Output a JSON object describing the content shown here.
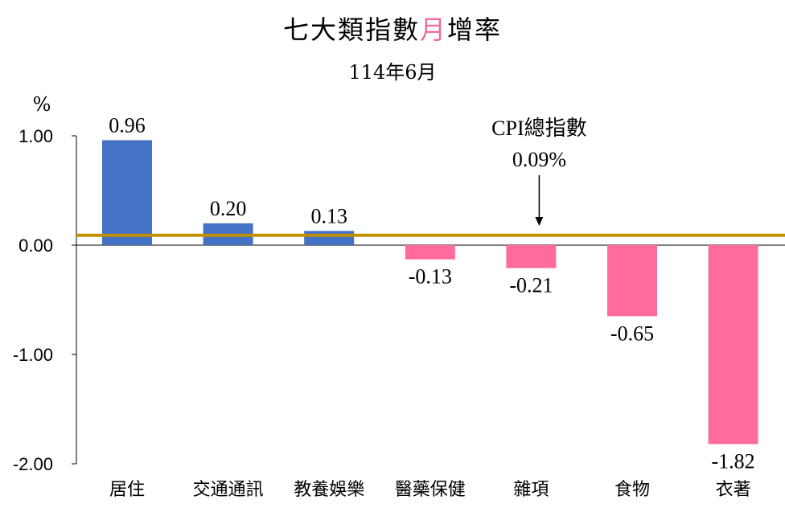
{
  "title": {
    "before": "七大類指數",
    "highlight": "月",
    "after": "增率",
    "highlight_color": "#f06b9c"
  },
  "subtitle": "114年6月",
  "chart_data": {
    "type": "bar",
    "ylabel": "%",
    "ylim": [
      -2.0,
      1.0
    ],
    "yticks": [
      1.0,
      0.0,
      -1.0,
      -2.0
    ],
    "ytick_labels": [
      "1.00",
      "0.00",
      "-1.00",
      "-2.00"
    ],
    "categories": [
      "居住",
      "交通通訊",
      "教養娛樂",
      "醫藥保健",
      "雜項",
      "食物",
      "衣著"
    ],
    "values": [
      0.96,
      0.2,
      0.13,
      -0.13,
      -0.21,
      -0.65,
      -1.82
    ],
    "value_labels": [
      "0.96",
      "0.20",
      "0.13",
      "-0.13",
      "-0.21",
      "-0.65",
      "-1.82"
    ],
    "positive_color": "#4472c4",
    "negative_color": "#ff6b9d",
    "reference_line": {
      "value": 0.09,
      "label_line1": "CPI總指數",
      "label_line2": "0.09%",
      "color": "#bf9000",
      "arrow_category_index": 4
    },
    "grid": false,
    "legend": "none"
  }
}
